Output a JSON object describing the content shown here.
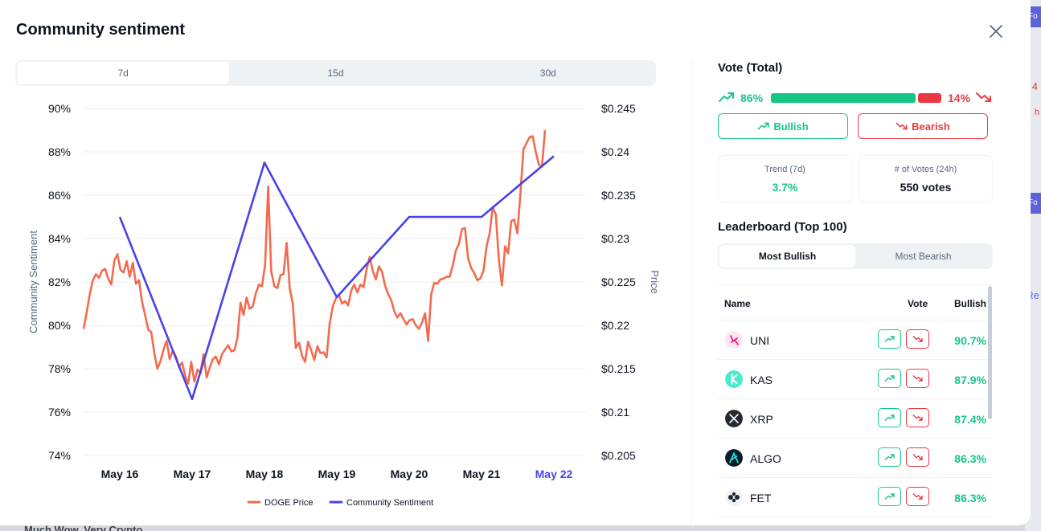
{
  "background": {
    "bottom_text": "Much Wow, Very Crypto",
    "strip": {
      "badge1": "Fo",
      "red1": "4",
      "red2": "h",
      "badge2": "Fo",
      "blue": "Re"
    }
  },
  "modal": {
    "title": "Community sentiment",
    "period_tabs": [
      {
        "label": "7d",
        "active": true
      },
      {
        "label": "15d",
        "active": false
      },
      {
        "label": "30d",
        "active": false
      }
    ]
  },
  "chart_data": {
    "type": "line",
    "x_ticks": [
      "May 16",
      "May 17",
      "May 18",
      "May 19",
      "May 20",
      "May 21",
      "May 22"
    ],
    "highlighted_x_tick": "May 22",
    "y_left": {
      "label": "Community Sentiment",
      "ticks": [
        "90%",
        "88%",
        "86%",
        "84%",
        "82%",
        "80%",
        "78%",
        "76%",
        "74%"
      ],
      "min": 74,
      "max": 90
    },
    "y_right": {
      "label": "Price",
      "ticks": [
        "$0.245",
        "$0.24",
        "$0.235",
        "$0.23",
        "$0.225",
        "$0.22",
        "$0.215",
        "$0.21",
        "$0.205"
      ],
      "min": 0.205,
      "max": 0.245
    },
    "grid": true,
    "legend_position": "bottom",
    "series": [
      {
        "name": "DOGE Price",
        "axis": "right",
        "color": "#f26b4e",
        "values": [
          0.2196,
          0.2215,
          0.2236,
          0.2252,
          0.2259,
          0.2255,
          0.2263,
          0.2265,
          0.2254,
          0.2247,
          0.2275,
          0.2282,
          0.2264,
          0.2261,
          0.2274,
          0.2256,
          0.2272,
          0.2248,
          0.2252,
          0.2227,
          0.2212,
          0.2195,
          0.2192,
          0.2168,
          0.215,
          0.2159,
          0.2172,
          0.2182,
          0.2161,
          0.2171,
          0.2164,
          0.2152,
          0.2157,
          0.2142,
          0.2133,
          0.2158,
          0.2135,
          0.2149,
          0.2145,
          0.2167,
          0.214,
          0.2151,
          0.2161,
          0.2164,
          0.2155,
          0.2167,
          0.2172,
          0.2177,
          0.217,
          0.2171,
          0.2185,
          0.2226,
          0.2212,
          0.2232,
          0.2219,
          0.2222,
          0.2237,
          0.2247,
          0.2245,
          0.227,
          0.236,
          0.2262,
          0.2245,
          0.2243,
          0.2258,
          0.2259,
          0.2295,
          0.2243,
          0.2225,
          0.2174,
          0.218,
          0.2165,
          0.2158,
          0.2181,
          0.2171,
          0.216,
          0.2176,
          0.2168,
          0.2169,
          0.2163,
          0.2202,
          0.2222,
          0.2231,
          0.2235,
          0.2225,
          0.2228,
          0.2223,
          0.224,
          0.2247,
          0.2238,
          0.2247,
          0.2244,
          0.2265,
          0.2279,
          0.2263,
          0.2253,
          0.2268,
          0.2262,
          0.2246,
          0.2236,
          0.2229,
          0.2216,
          0.2209,
          0.2214,
          0.2207,
          0.2201,
          0.2206,
          0.2207,
          0.22,
          0.2196,
          0.2203,
          0.2214,
          0.2182,
          0.2236,
          0.2249,
          0.2248,
          0.2253,
          0.2254,
          0.2256,
          0.2256,
          0.2269,
          0.2286,
          0.2294,
          0.2311,
          0.2312,
          0.2277,
          0.2266,
          0.226,
          0.2252,
          0.2254,
          0.2263,
          0.2291,
          0.2306,
          0.2336,
          0.2328,
          0.2275,
          0.2246,
          0.2291,
          0.2283,
          0.232,
          0.2322,
          0.2306,
          0.2352,
          0.2403,
          0.241,
          0.2417,
          0.2418,
          0.24,
          0.2385,
          0.2383,
          0.2425
        ]
      },
      {
        "name": "Community Sentiment",
        "axis": "left",
        "color": "#4743e8",
        "x_index": [
          0,
          1,
          2,
          3,
          4,
          5,
          6
        ],
        "values": [
          85.0,
          76.6,
          87.5,
          81.3,
          85.0,
          85.0,
          87.8
        ]
      }
    ]
  },
  "vote": {
    "title": "Vote (Total)",
    "bullish_pct": "86%",
    "bearish_pct": "14%",
    "bullish_fraction": 0.86,
    "bullish_button": "Bullish",
    "bearish_button": "Bearish",
    "trend_label": "Trend (7d)",
    "trend_value": "3.7%",
    "votes_label": "# of Votes (24h)",
    "votes_value": "550 votes"
  },
  "leaderboard": {
    "title": "Leaderboard (Top 100)",
    "tabs": [
      {
        "label": "Most Bullish",
        "active": true
      },
      {
        "label": "Most Bearish",
        "active": false
      }
    ],
    "headers": {
      "name": "Name",
      "vote": "Vote",
      "bullish": "Bullish"
    },
    "rows": [
      {
        "name": "UNI",
        "bullish": "90.7%",
        "logo": "uni-logo-icon",
        "color": "#ff007a"
      },
      {
        "name": "KAS",
        "bullish": "87.9%",
        "logo": "kas-logo-icon",
        "color": "#49eacb"
      },
      {
        "name": "XRP",
        "bullish": "87.4%",
        "logo": "xrp-logo-icon",
        "color": "#23292f"
      },
      {
        "name": "ALGO",
        "bullish": "86.3%",
        "logo": "algo-logo-icon",
        "color": "#000000"
      },
      {
        "name": "FET",
        "bullish": "86.3%",
        "logo": "fet-logo-icon",
        "color": "#1d2a3a"
      }
    ]
  },
  "colors": {
    "green": "#16c784",
    "red": "#ea3943",
    "accent_blue": "#4743e8",
    "price_orange": "#f26b4e"
  }
}
